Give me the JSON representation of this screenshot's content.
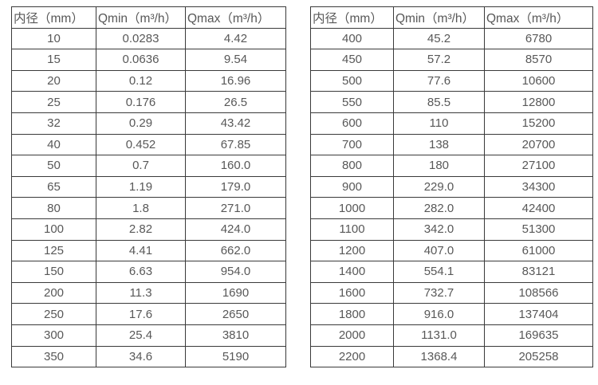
{
  "page": {
    "background_color": "#ffffff",
    "text_color": "#585858",
    "border_color": "#3a3a3a"
  },
  "tables": [
    {
      "name": "flow-spec-table-small-diameters",
      "headers": [
        "内径（mm）",
        "Qmin（m³/h）",
        "Qmax（m³/h）"
      ],
      "rows": [
        [
          "10",
          "0.0283",
          "4.42"
        ],
        [
          "15",
          "0.0636",
          "9.54"
        ],
        [
          "20",
          "0.12",
          "16.96"
        ],
        [
          "25",
          "0.176",
          "26.5"
        ],
        [
          "32",
          "0.29",
          "43.42"
        ],
        [
          "40",
          "0.452",
          "67.85"
        ],
        [
          "50",
          "0.7",
          "160.0"
        ],
        [
          "65",
          "1.19",
          "179.0"
        ],
        [
          "80",
          "1.8",
          "271.0"
        ],
        [
          "100",
          "2.82",
          "424.0"
        ],
        [
          "125",
          "4.41",
          "662.0"
        ],
        [
          "150",
          "6.63",
          "954.0"
        ],
        [
          "200",
          "11.3",
          "1690"
        ],
        [
          "250",
          "17.6",
          "2650"
        ],
        [
          "300",
          "25.4",
          "3810"
        ],
        [
          "350",
          "34.6",
          "5190"
        ]
      ]
    },
    {
      "name": "flow-spec-table-large-diameters",
      "headers": [
        "内径（mm）",
        "Qmin（m³/h）",
        "Qmax（m³/h）"
      ],
      "rows": [
        [
          "400",
          "45.2",
          "6780"
        ],
        [
          "450",
          "57.2",
          "8570"
        ],
        [
          "500",
          "77.6",
          "10600"
        ],
        [
          "550",
          "85.5",
          "12800"
        ],
        [
          "600",
          "110",
          "15200"
        ],
        [
          "700",
          "138",
          "20700"
        ],
        [
          "800",
          "180",
          "27100"
        ],
        [
          "900",
          "229.0",
          "34300"
        ],
        [
          "1000",
          "282.0",
          "42400"
        ],
        [
          "1100",
          "342.0",
          "51300"
        ],
        [
          "1200",
          "407.0",
          "61000"
        ],
        [
          "1400",
          "554.1",
          "83121"
        ],
        [
          "1600",
          "732.7",
          "108566"
        ],
        [
          "1800",
          "916.0",
          "137404"
        ],
        [
          "2000",
          "1131.0",
          "169635"
        ],
        [
          "2200",
          "1368.4",
          "205258"
        ]
      ]
    }
  ]
}
